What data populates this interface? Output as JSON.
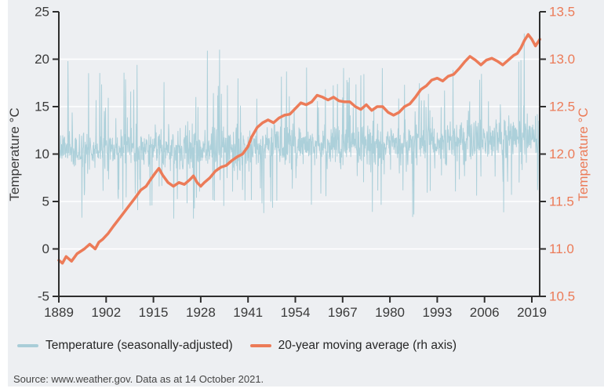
{
  "chart": {
    "panel_background": "#edeff2",
    "page_background": "#ffffff",
    "grid_color": "#ffffff",
    "axis_color": "#2e2e2e",
    "left_axis": {
      "title": "Temperature °C",
      "text_color": "#3a3a3a",
      "tick_labels": [
        "25",
        "20",
        "15",
        "10",
        "5",
        "0",
        "-5"
      ],
      "tick_values": [
        25,
        20,
        15,
        10,
        5,
        0,
        -5
      ],
      "range": [
        -5,
        25
      ]
    },
    "right_axis": {
      "title": "Temperature °C",
      "text_color": "#ec7b58",
      "tick_labels": [
        "13.5",
        "13.0",
        "12.5",
        "12.0",
        "11.5",
        "11.0",
        "10.5"
      ],
      "tick_values": [
        13.5,
        13.0,
        12.5,
        12.0,
        11.5,
        11.0,
        10.5
      ],
      "range": [
        10.5,
        13.5
      ]
    },
    "x_axis": {
      "text_color": "#3a3a3a",
      "tick_labels": [
        "1889",
        "1902",
        "1915",
        "1928",
        "1941",
        "1954",
        "1967",
        "1980",
        "1993",
        "2006",
        "2019"
      ],
      "tick_values": [
        1889,
        1902,
        1915,
        1928,
        1941,
        1954,
        1967,
        1980,
        1993,
        2006,
        2019
      ],
      "range": [
        1889,
        2021.2
      ]
    }
  },
  "chart_data": {
    "type": "line",
    "title": "",
    "xlabel": "",
    "grid": "horizontal-white",
    "legend_position": "bottom",
    "series": [
      {
        "name": "Temperature (seasonally-adjusted)",
        "axis": "left",
        "color": "#a9cdd8",
        "stroke_width": 1,
        "style": "noisy-monthly",
        "start": 1889.0,
        "end": 2021.2,
        "points_per_year": 12,
        "trend": [
          [
            1889,
            10.35
          ],
          [
            1895,
            10.3
          ],
          [
            1905,
            10.45
          ],
          [
            1915,
            10.55
          ],
          [
            1925,
            10.5
          ],
          [
            1935,
            10.65
          ],
          [
            1945,
            10.8
          ],
          [
            1955,
            11.0
          ],
          [
            1965,
            11.05
          ],
          [
            1975,
            11.0
          ],
          [
            1985,
            11.15
          ],
          [
            1995,
            11.4
          ],
          [
            2005,
            11.55
          ],
          [
            2015,
            11.75
          ],
          [
            2021.2,
            11.9
          ]
        ],
        "noise_sigma": 1.05,
        "spike_up_prob": 0.045,
        "spike_down_prob": 0.045,
        "spike_up_mag": [
          2.5,
          8.0
        ],
        "spike_down_mag": [
          2.5,
          7.0
        ],
        "clamp": [
          3.2,
          22.7
        ],
        "seed": 7,
        "extremes": [
          [
            1895.3,
            3.3
          ],
          [
            1910.5,
            19.4
          ],
          [
            1929.8,
            20.9
          ],
          [
            1933.2,
            21.0
          ],
          [
            1944.8,
            4.8
          ],
          [
            1975.2,
            3.9
          ],
          [
            2013.4,
            5.7
          ],
          [
            2016.9,
            22.7
          ]
        ]
      },
      {
        "name": "20-year moving average (rh axis)",
        "axis": "right",
        "color": "#ec7b58",
        "stroke_width": 3.5,
        "style": "smooth",
        "points": [
          [
            1889,
            10.88
          ],
          [
            1890,
            10.85
          ],
          [
            1891,
            10.92
          ],
          [
            1892.5,
            10.87
          ],
          [
            1894,
            10.95
          ],
          [
            1896,
            11.0
          ],
          [
            1897.5,
            11.05
          ],
          [
            1899,
            11.0
          ],
          [
            1900,
            11.07
          ],
          [
            1901,
            11.1
          ],
          [
            1902.5,
            11.16
          ],
          [
            1904,
            11.24
          ],
          [
            1906,
            11.34
          ],
          [
            1908,
            11.44
          ],
          [
            1910,
            11.54
          ],
          [
            1911.5,
            11.62
          ],
          [
            1913,
            11.66
          ],
          [
            1914,
            11.72
          ],
          [
            1915.5,
            11.8
          ],
          [
            1916.5,
            11.85
          ],
          [
            1917.5,
            11.78
          ],
          [
            1919,
            11.7
          ],
          [
            1920.5,
            11.66
          ],
          [
            1922,
            11.7
          ],
          [
            1923.5,
            11.68
          ],
          [
            1925,
            11.73
          ],
          [
            1926,
            11.77
          ],
          [
            1927,
            11.7
          ],
          [
            1928,
            11.66
          ],
          [
            1929,
            11.7
          ],
          [
            1930.5,
            11.75
          ],
          [
            1932,
            11.82
          ],
          [
            1933.5,
            11.86
          ],
          [
            1935,
            11.88
          ],
          [
            1936.5,
            11.93
          ],
          [
            1938,
            11.97
          ],
          [
            1939.5,
            12.0
          ],
          [
            1941,
            12.08
          ],
          [
            1942,
            12.18
          ],
          [
            1943.5,
            12.28
          ],
          [
            1945,
            12.33
          ],
          [
            1946.5,
            12.36
          ],
          [
            1948,
            12.33
          ],
          [
            1949.5,
            12.38
          ],
          [
            1951,
            12.41
          ],
          [
            1952.5,
            12.42
          ],
          [
            1954,
            12.48
          ],
          [
            1955.5,
            12.54
          ],
          [
            1957,
            12.52
          ],
          [
            1958.5,
            12.55
          ],
          [
            1960,
            12.62
          ],
          [
            1961.5,
            12.6
          ],
          [
            1963,
            12.57
          ],
          [
            1964.5,
            12.6
          ],
          [
            1966,
            12.56
          ],
          [
            1967.5,
            12.55
          ],
          [
            1969,
            12.55
          ],
          [
            1970.5,
            12.5
          ],
          [
            1972,
            12.47
          ],
          [
            1973.5,
            12.52
          ],
          [
            1975,
            12.46
          ],
          [
            1976.5,
            12.5
          ],
          [
            1978,
            12.5
          ],
          [
            1979.5,
            12.44
          ],
          [
            1981,
            12.41
          ],
          [
            1982.5,
            12.44
          ],
          [
            1984,
            12.5
          ],
          [
            1985.5,
            12.53
          ],
          [
            1987,
            12.6
          ],
          [
            1988.5,
            12.68
          ],
          [
            1990,
            12.72
          ],
          [
            1991.5,
            12.78
          ],
          [
            1993,
            12.8
          ],
          [
            1994.5,
            12.77
          ],
          [
            1996,
            12.82
          ],
          [
            1997.5,
            12.84
          ],
          [
            1999,
            12.9
          ],
          [
            2000.5,
            12.97
          ],
          [
            2002,
            13.03
          ],
          [
            2003.5,
            12.99
          ],
          [
            2005,
            12.94
          ],
          [
            2006.5,
            12.99
          ],
          [
            2008,
            13.01
          ],
          [
            2009.5,
            12.98
          ],
          [
            2011,
            12.94
          ],
          [
            2012.5,
            12.99
          ],
          [
            2014,
            13.04
          ],
          [
            2015,
            13.06
          ],
          [
            2016,
            13.12
          ],
          [
            2017,
            13.2
          ],
          [
            2018,
            13.26
          ],
          [
            2019,
            13.21
          ],
          [
            2020,
            13.14
          ],
          [
            2021.2,
            13.21
          ]
        ]
      }
    ]
  },
  "legend": {
    "items": [
      {
        "label": "Temperature (seasonally-adjusted)",
        "color": "#a9cdd8"
      },
      {
        "label": "20-year moving average (rh axis)",
        "color": "#ec7b58"
      }
    ]
  },
  "footer": {
    "source": "Source: www.weather.gov. Data as at 14 October 2021."
  }
}
